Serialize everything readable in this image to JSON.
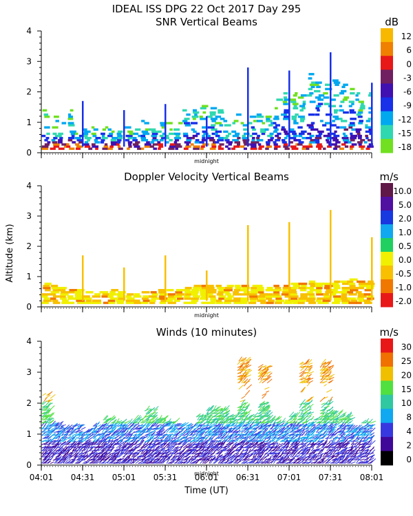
{
  "header": {
    "title": "IDEAL ISS DPG   22 Oct 2017 Day 295"
  },
  "yaxis": {
    "label": "Altitude (km)",
    "ticks": [
      "0",
      "1",
      "2",
      "3",
      "4"
    ],
    "ylim": [
      0,
      4
    ]
  },
  "xaxis": {
    "label": "Time (UT)",
    "midnight": "midnight",
    "ticks": [
      "04:01",
      "04:31",
      "05:01",
      "05:31",
      "06:01",
      "06:31",
      "07:01",
      "07:31",
      "08:01"
    ]
  },
  "chart_data": [
    {
      "type": "heatmap",
      "title": "SNR Vertical Beams",
      "unit": "dB",
      "colorbar": {
        "labels": [
          "12",
          "6",
          "0",
          "-3",
          "-6",
          "-9",
          "-12",
          "-15",
          "-18"
        ],
        "colors": [
          "#f8b800",
          "#f08000",
          "#e81818",
          "#702060",
          "#4010b0",
          "#1830e8",
          "#00a8f0",
          "#30d8b0",
          "#70e020"
        ]
      },
      "xlabel": "",
      "ylabel": "",
      "ylim": [
        0,
        4
      ],
      "top_km": [
        1.3,
        1.1,
        1.0,
        1.4,
        0.8,
        0.7,
        0.8,
        0.9,
        0.9,
        0.7,
        0.8,
        0.8,
        1.0,
        1.2,
        0.9,
        0.9,
        1.0,
        1.5,
        1.5,
        1.5,
        1.4,
        1.3,
        1.1,
        1.3,
        1.0,
        1.2,
        1.2,
        1.3,
        1.7,
        2.0,
        1.9,
        2.1,
        2.5,
        2.3,
        2.2,
        2.3,
        2.4,
        2.1,
        1.9,
        1.9
      ],
      "spikes": [
        {
          "time": "04:31",
          "top_km": 1.7
        },
        {
          "time": "05:01",
          "top_km": 1.4
        },
        {
          "time": "05:31",
          "top_km": 1.6
        },
        {
          "time": "06:01",
          "top_km": 1.2
        },
        {
          "time": "06:31",
          "top_km": 2.8
        },
        {
          "time": "07:01",
          "top_km": 2.7
        },
        {
          "time": "07:31",
          "top_km": 3.3
        },
        {
          "time": "08:01",
          "top_km": 2.3
        }
      ]
    },
    {
      "type": "heatmap",
      "title": "Doppler Velocity Vertical Beams",
      "unit": "m/s",
      "colorbar": {
        "labels": [
          "10.0",
          "5.0",
          "2.0",
          "1.0",
          "0.5",
          "0.0",
          "-0.5",
          "-1.0",
          "-2.0"
        ],
        "colors": [
          "#601848",
          "#5010a0",
          "#1838e0",
          "#10a8f0",
          "#20d060",
          "#f0f000",
          "#f8c000",
          "#f07800",
          "#e81818"
        ]
      },
      "xlabel": "",
      "ylabel": "Altitude (km)",
      "ylim": [
        0,
        4
      ],
      "top_km": [
        0.7,
        0.6,
        0.55,
        0.5,
        0.5,
        0.45,
        0.45,
        0.45,
        0.5,
        0.45,
        0.4,
        0.45,
        0.4,
        0.45,
        0.5,
        0.5,
        0.5,
        0.55,
        0.6,
        0.6,
        0.65,
        0.6,
        0.6,
        0.6,
        0.65,
        0.6,
        0.6,
        0.6,
        0.65,
        0.65,
        0.7,
        0.7,
        0.75,
        0.7,
        0.7,
        0.75,
        0.8,
        0.85,
        0.8,
        0.8
      ],
      "spikes": [
        {
          "time": "04:31",
          "top_km": 1.7
        },
        {
          "time": "05:01",
          "top_km": 1.3
        },
        {
          "time": "05:31",
          "top_km": 1.7
        },
        {
          "time": "06:01",
          "top_km": 1.2
        },
        {
          "time": "06:31",
          "top_km": 2.7
        },
        {
          "time": "07:01",
          "top_km": 2.8
        },
        {
          "time": "07:31",
          "top_km": 3.2
        },
        {
          "time": "08:01",
          "top_km": 2.3
        }
      ]
    },
    {
      "type": "wind_barbs",
      "title": "Winds (10 minutes)",
      "unit": "m/s",
      "colorbar": {
        "labels": [
          "30",
          "25",
          "20",
          "15",
          "10",
          "8",
          "4",
          "2",
          "0"
        ],
        "colors": [
          "#e81818",
          "#f07000",
          "#f0c000",
          "#50e040",
          "#30c8a0",
          "#10a8f0",
          "#3838e0",
          "#400898",
          "#000000"
        ]
      },
      "xlabel": "Time (UT)",
      "ylabel": "",
      "ylim": [
        0,
        4
      ],
      "profile_tops_km": [
        2.3,
        1.3,
        1.2,
        1.3,
        1.1,
        1.3,
        1.5,
        1.4,
        1.4,
        1.5,
        1.8,
        1.5,
        1.4,
        1.3,
        1.3,
        1.6,
        1.8,
        1.8,
        1.6,
        3.4,
        1.6,
        3.2,
        1.5,
        1.4,
        1.6,
        3.3,
        1.5,
        3.3,
        1.7,
        1.6,
        1.2,
        1.4
      ]
    }
  ]
}
